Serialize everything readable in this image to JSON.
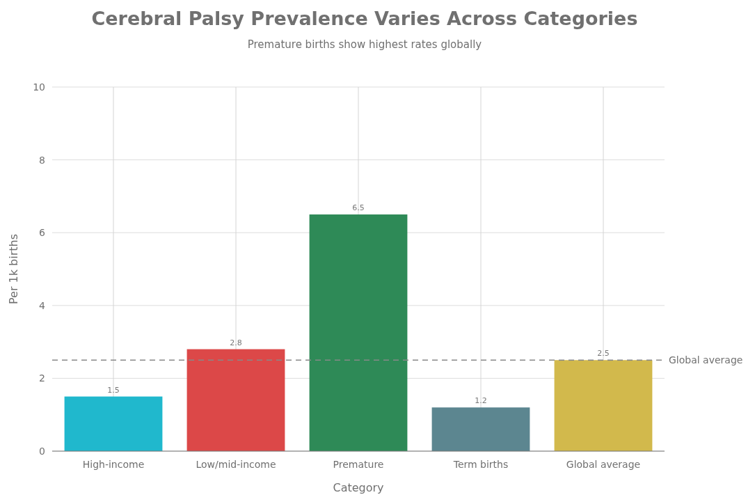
{
  "chart_data": {
    "type": "bar",
    "title": "Cerebral Palsy Prevalence Varies Across Categories",
    "subtitle": "Premature births show highest rates globally",
    "xlabel": "Category",
    "ylabel": "Per 1k births",
    "categories": [
      "High-income",
      "Low/mid-income",
      "Premature",
      "Term births",
      "Global average"
    ],
    "values": [
      1.5,
      2.8,
      6.5,
      1.2,
      2.5
    ],
    "colors": [
      "#20b8cd",
      "#dc4848",
      "#2e8a57",
      "#5c8690",
      "#d2b94c"
    ],
    "ylim": [
      0,
      10
    ],
    "yticks": [
      0,
      2,
      4,
      6,
      8,
      10
    ],
    "grid": true,
    "data_labels": true,
    "ref_lines": [
      {
        "axis": "y",
        "value": 2.5,
        "label": "Global average",
        "color": "#888888",
        "line_style": "dashed"
      }
    ]
  }
}
